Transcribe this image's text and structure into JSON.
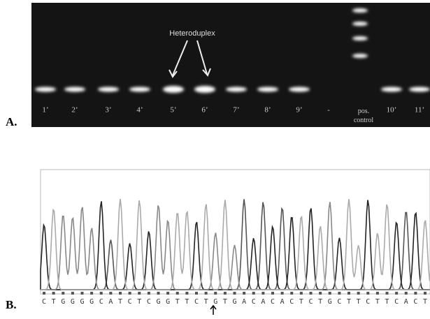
{
  "panel_a": {
    "label": "A.",
    "annotation": "Heteroduplex",
    "lanes": [
      "1’",
      "2’",
      "3’",
      "4’",
      "5’",
      "6’",
      "7’",
      "8’",
      "9’",
      "-",
      "pos. control",
      "10’",
      "11’"
    ]
  },
  "panel_b": {
    "label": "B.",
    "sequence": [
      "C",
      "T",
      "G",
      "G",
      "G",
      "G",
      "C",
      "A",
      "T",
      "C",
      "T",
      "C",
      "G",
      "G",
      "T",
      "T",
      "C",
      "T",
      "G",
      "T",
      "G",
      "A",
      "C",
      "A",
      "C",
      "A",
      "C",
      "T",
      "C",
      "T",
      "G",
      "C",
      "T",
      "T",
      "C",
      "T",
      "T",
      "C",
      "A",
      "C",
      "T"
    ]
  }
}
